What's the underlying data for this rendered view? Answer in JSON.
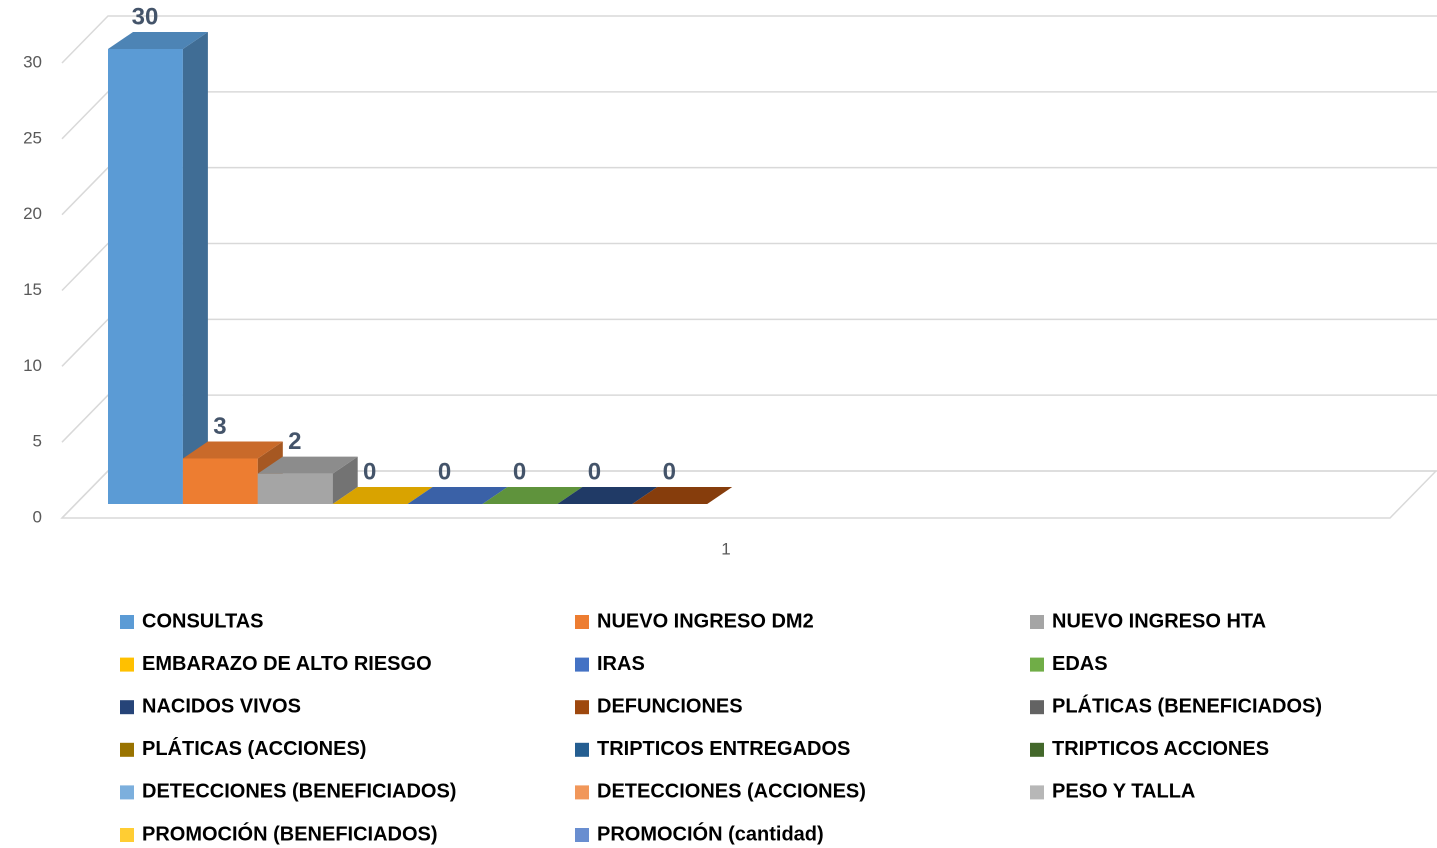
{
  "chart_data": {
    "type": "bar3d",
    "categories": [
      "1"
    ],
    "ylim": [
      0,
      30
    ],
    "yticks": [
      0,
      5,
      10,
      15,
      20,
      25,
      30
    ],
    "grid": true,
    "series": [
      {
        "name": "CONSULTAS",
        "color": "#5b9bd5",
        "values": [
          30
        ]
      },
      {
        "name": "NUEVO INGRESO DM2",
        "color": "#ed7d31",
        "values": [
          3
        ]
      },
      {
        "name": "NUEVO INGRESO HTA",
        "color": "#a5a5a5",
        "values": [
          2
        ]
      },
      {
        "name": "EMBARAZO DE ALTO RIESGO",
        "color": "#ffc000",
        "values": [
          0
        ]
      },
      {
        "name": "IRAS",
        "color": "#4472c4",
        "values": [
          0
        ]
      },
      {
        "name": "EDAS",
        "color": "#70ad47",
        "values": [
          0
        ]
      },
      {
        "name": "NACIDOS VIVOS",
        "color": "#264478",
        "values": [
          0
        ]
      },
      {
        "name": "DEFUNCIONES",
        "color": "#9e480e",
        "values": [
          0
        ]
      },
      {
        "name": "PLÁTICAS (BENEFICIADOS)",
        "color": "#636363",
        "values": [
          null
        ]
      },
      {
        "name": "PLÁTICAS (ACCIONES)",
        "color": "#997300",
        "values": [
          null
        ]
      },
      {
        "name": "TRIPTICOS ENTREGADOS",
        "color": "#255e91",
        "values": [
          null
        ]
      },
      {
        "name": "TRIPTICOS ACCIONES",
        "color": "#43682b",
        "values": [
          null
        ]
      },
      {
        "name": "DETECCIONES (BENEFICIADOS)",
        "color": "#7cafdd",
        "values": [
          null
        ]
      },
      {
        "name": "DETECCIONES (ACCIONES)",
        "color": "#f1975a",
        "values": [
          null
        ]
      },
      {
        "name": "PESO Y TALLA",
        "color": "#b7b7b7",
        "values": [
          null
        ]
      },
      {
        "name": "PROMOCIÓN (BENEFICIADOS)",
        "color": "#ffcd33",
        "values": [
          null
        ]
      },
      {
        "name": "PROMOCIÓN (cantidad)",
        "color": "#698ed0",
        "values": [
          null
        ]
      }
    ]
  }
}
